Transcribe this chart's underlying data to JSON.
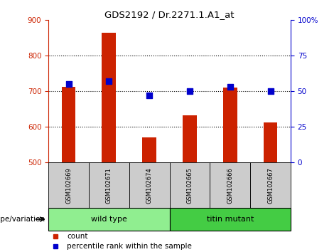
{
  "title": "GDS2192 / Dr.2271.1.A1_at",
  "samples": [
    "GSM102669",
    "GSM102671",
    "GSM102674",
    "GSM102665",
    "GSM102666",
    "GSM102667"
  ],
  "counts": [
    712,
    865,
    570,
    632,
    710,
    612
  ],
  "percentiles": [
    55,
    57,
    47,
    50,
    53,
    50
  ],
  "ylim_left": [
    500,
    900
  ],
  "ylim_right": [
    0,
    100
  ],
  "yticks_left": [
    500,
    600,
    700,
    800,
    900
  ],
  "yticks_right": [
    0,
    25,
    50,
    75,
    100
  ],
  "ytick_labels_right": [
    "0",
    "25",
    "50",
    "75",
    "100%"
  ],
  "bar_color": "#cc2200",
  "dot_color": "#0000cc",
  "grid_color": "#000000",
  "groups": [
    {
      "label": "wild type",
      "indices": [
        0,
        1,
        2
      ],
      "color": "#90ee90"
    },
    {
      "label": "titin mutant",
      "indices": [
        3,
        4,
        5
      ],
      "color": "#44cc44"
    }
  ],
  "group_label": "genotype/variation",
  "legend_items": [
    {
      "label": "count",
      "color": "#cc2200"
    },
    {
      "label": "percentile rank within the sample",
      "color": "#0000cc"
    }
  ],
  "left_axis_color": "#cc2200",
  "right_axis_color": "#0000cc",
  "bar_width": 0.35,
  "dot_size": 40,
  "label_box_color": "#cccccc",
  "background_color": "#ffffff"
}
